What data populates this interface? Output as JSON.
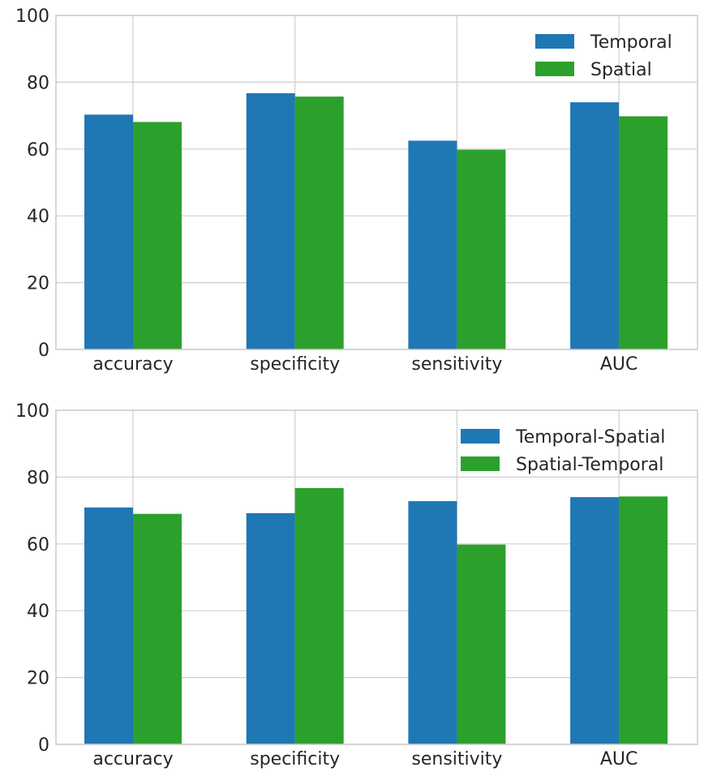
{
  "chart_data": [
    {
      "type": "bar",
      "title": "",
      "xlabel": "",
      "ylabel": "",
      "ylim": [
        0,
        100
      ],
      "yticks": [
        0,
        20,
        40,
        60,
        80,
        100
      ],
      "grid": true,
      "legend_position": "top-right",
      "categories": [
        "accuracy",
        "specificity",
        "sensitivity",
        "AUC"
      ],
      "series": [
        {
          "name": "Temporal",
          "color": "#1f77b4",
          "values": [
            70.3,
            76.7,
            62.5,
            74.0
          ]
        },
        {
          "name": "Spatial",
          "color": "#2ca02c",
          "values": [
            68.1,
            75.7,
            59.8,
            69.8
          ]
        }
      ]
    },
    {
      "type": "bar",
      "title": "",
      "xlabel": "",
      "ylabel": "",
      "ylim": [
        0,
        100
      ],
      "yticks": [
        0,
        20,
        40,
        60,
        80,
        100
      ],
      "grid": true,
      "legend_position": "top-right",
      "categories": [
        "accuracy",
        "specificity",
        "sensitivity",
        "AUC"
      ],
      "series": [
        {
          "name": "Temporal-Spatial",
          "color": "#1f77b4",
          "values": [
            70.9,
            69.2,
            72.8,
            74.0
          ]
        },
        {
          "name": "Spatial-Temporal",
          "color": "#2ca02c",
          "values": [
            69.0,
            76.7,
            59.8,
            74.2
          ]
        }
      ]
    }
  ]
}
